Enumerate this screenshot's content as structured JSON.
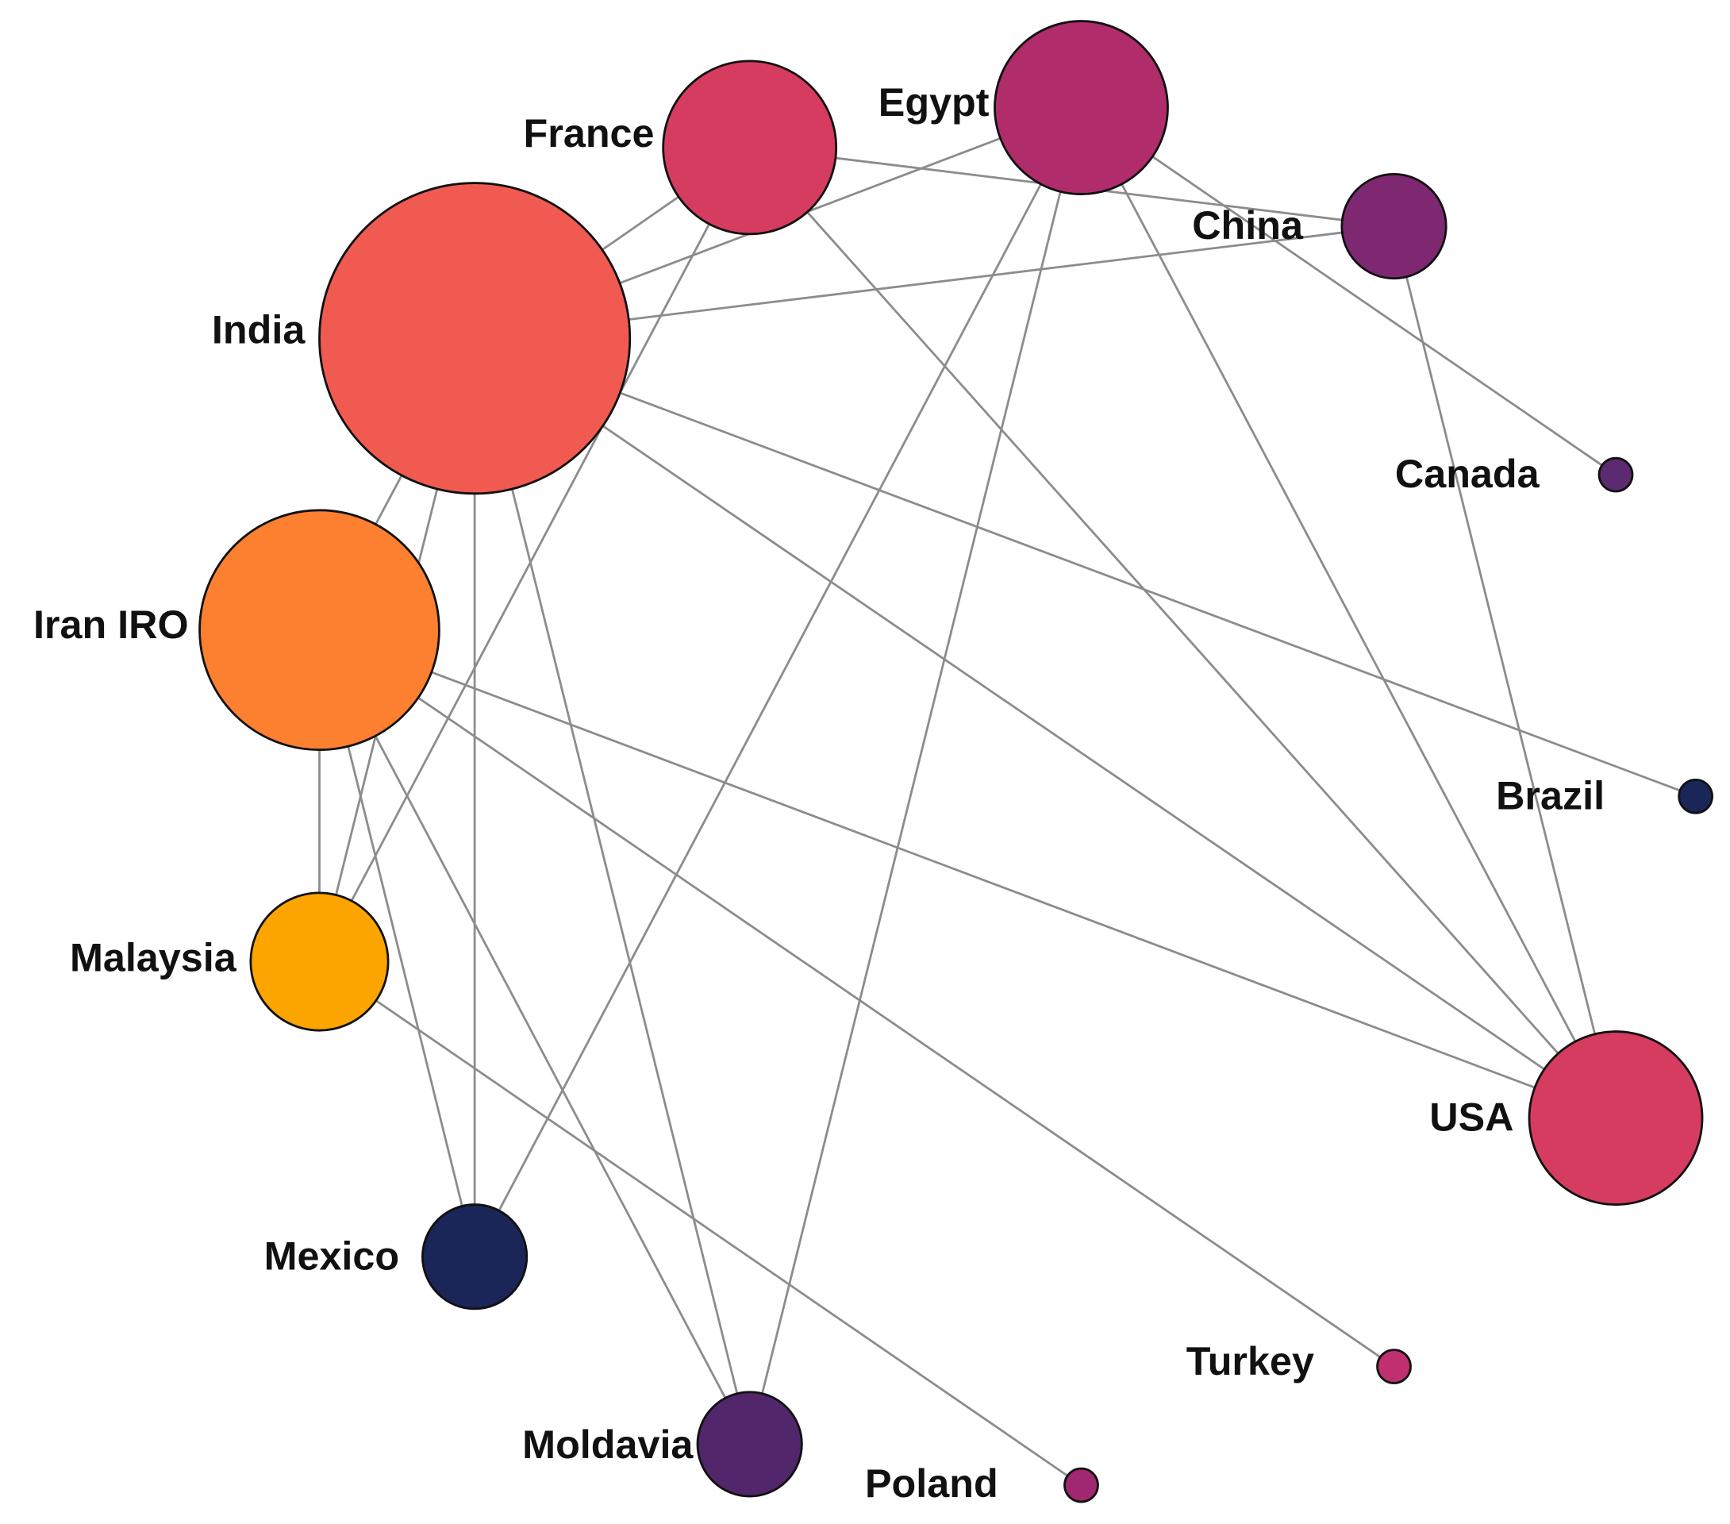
{
  "nodes": [
    {
      "label": "India"
    },
    {
      "label": "France"
    },
    {
      "label": "Egypt"
    },
    {
      "label": "China"
    },
    {
      "label": "Canada"
    },
    {
      "label": "Brazil"
    },
    {
      "label": "USA"
    },
    {
      "label": "Turkey"
    },
    {
      "label": "Poland"
    },
    {
      "label": "Moldavia"
    },
    {
      "label": "Mexico"
    },
    {
      "label": "Malaysia"
    },
    {
      "label": "Iran IRO"
    }
  ]
}
